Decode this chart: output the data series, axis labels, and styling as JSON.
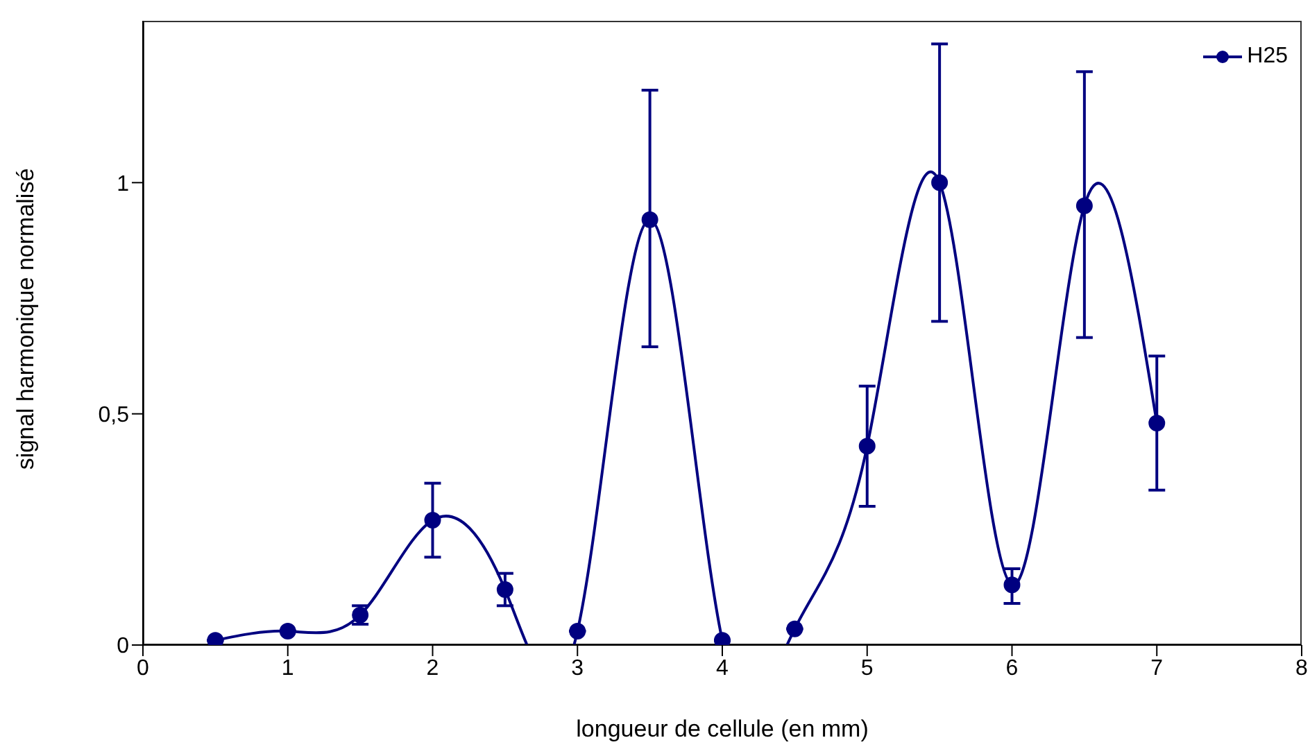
{
  "chart_data": {
    "type": "line",
    "xlabel": "longueur de cellule (en mm)",
    "ylabel": "signal harmonique normalisé",
    "x": [
      0.5,
      1,
      1.5,
      2,
      2.5,
      3,
      3.5,
      4,
      4.5,
      5,
      5.5,
      6,
      6.5,
      7
    ],
    "series": [
      {
        "name": "H25",
        "color": "#000080",
        "values": [
          0.01,
          0.03,
          0.065,
          0.27,
          0.12,
          0.03,
          0.92,
          0.01,
          0.035,
          0.43,
          1.0,
          0.13,
          0.95,
          0.48
        ],
        "errors": [
          null,
          null,
          [
            0.045,
            0.085
          ],
          [
            0.19,
            0.35
          ],
          [
            0.085,
            0.155
          ],
          null,
          [
            0.645,
            1.2
          ],
          null,
          null,
          [
            0.3,
            0.56
          ],
          [
            0.7,
            1.3
          ],
          [
            0.09,
            0.165
          ],
          [
            0.665,
            1.24
          ],
          [
            0.335,
            0.625
          ]
        ]
      }
    ],
    "xlim": [
      0,
      8
    ],
    "xticks": [
      0,
      1,
      2,
      3,
      4,
      5,
      6,
      7,
      8
    ],
    "ylim": [
      0,
      1.35
    ],
    "yticks": [
      0,
      {
        "value": 0.5,
        "label": "0,5"
      },
      1
    ],
    "grid": false,
    "legend": "top right",
    "marker": "circle",
    "line_style": "solid"
  }
}
